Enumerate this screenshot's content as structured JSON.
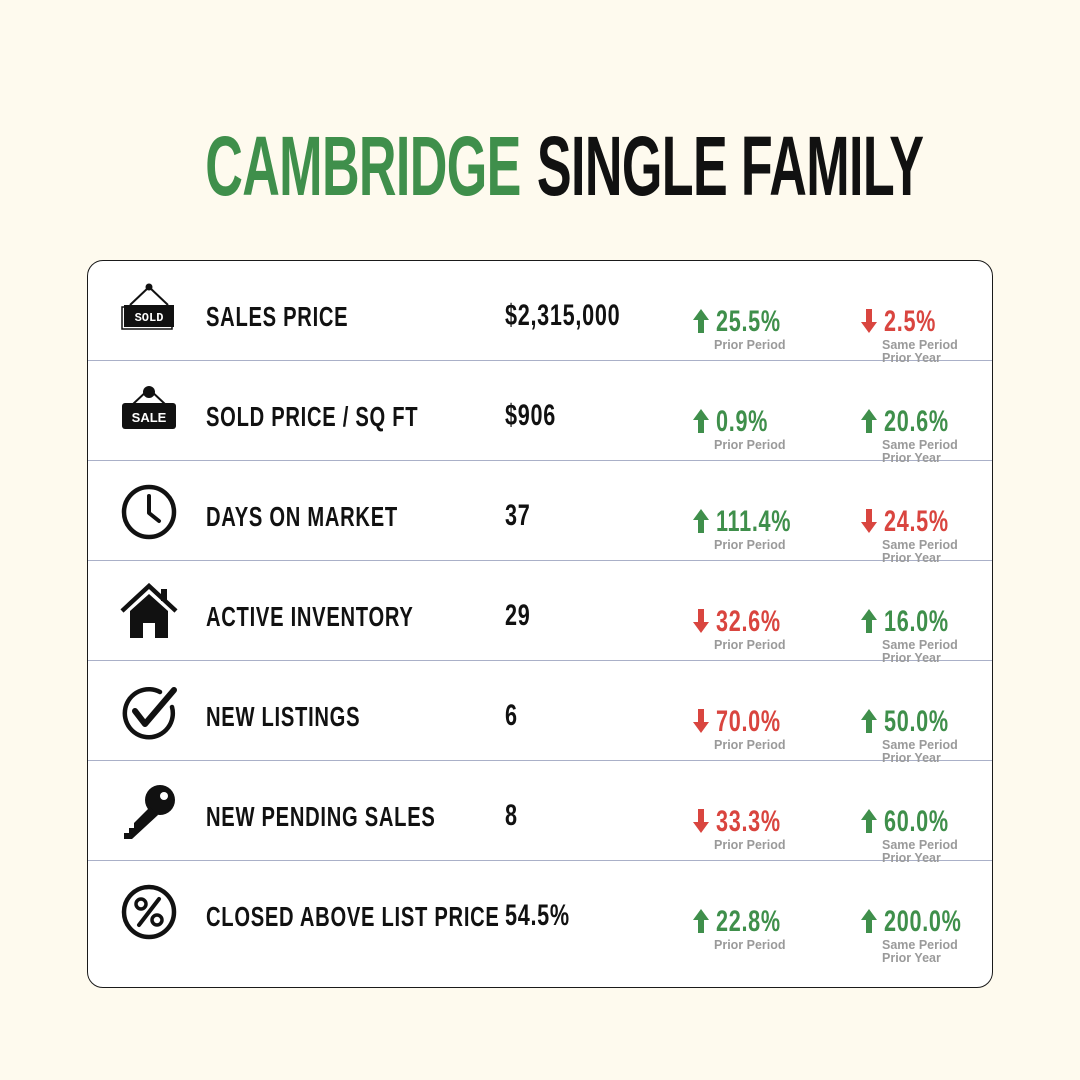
{
  "title": {
    "city": "CAMBRIDGE",
    "type": "SINGLE FAMILY"
  },
  "colors": {
    "green": "#3f8f4b",
    "red": "#d9453f",
    "background": "#fefaee"
  },
  "metrics": [
    {
      "icon": "sold-sign-icon",
      "label": "SALES PRICE",
      "value": "$2,315,000",
      "prior_period": {
        "direction": "up",
        "value": "25.5%",
        "caption": "Prior Period"
      },
      "prior_year": {
        "direction": "down",
        "value": "2.5%",
        "caption_line1": "Same Period",
        "caption_line2": "Prior Year"
      }
    },
    {
      "icon": "sale-sign-icon",
      "label": "SOLD PRICE / SQ FT",
      "value": "$906",
      "prior_period": {
        "direction": "up",
        "value": "0.9%",
        "caption": "Prior Period"
      },
      "prior_year": {
        "direction": "up",
        "value": "20.6%",
        "caption_line1": "Same Period",
        "caption_line2": "Prior Year"
      }
    },
    {
      "icon": "clock-icon",
      "label": "DAYS ON MARKET",
      "value": "37",
      "prior_period": {
        "direction": "up",
        "value": "111.4%",
        "caption": "Prior Period"
      },
      "prior_year": {
        "direction": "down",
        "value": "24.5%",
        "caption_line1": "Same Period",
        "caption_line2": "Prior Year"
      }
    },
    {
      "icon": "house-icon",
      "label": "ACTIVE INVENTORY",
      "value": "29",
      "prior_period": {
        "direction": "down",
        "value": "32.6%",
        "caption": "Prior Period"
      },
      "prior_year": {
        "direction": "up",
        "value": "16.0%",
        "caption_line1": "Same Period",
        "caption_line2": "Prior Year"
      }
    },
    {
      "icon": "checkmark-circle-icon",
      "label": "NEW LISTINGS",
      "value": "6",
      "prior_period": {
        "direction": "down",
        "value": "70.0%",
        "caption": "Prior Period"
      },
      "prior_year": {
        "direction": "up",
        "value": "50.0%",
        "caption_line1": "Same Period",
        "caption_line2": "Prior Year"
      }
    },
    {
      "icon": "key-icon",
      "label": "NEW PENDING SALES",
      "value": "8",
      "prior_period": {
        "direction": "down",
        "value": "33.3%",
        "caption": "Prior Period"
      },
      "prior_year": {
        "direction": "up",
        "value": "60.0%",
        "caption_line1": "Same Period",
        "caption_line2": "Prior Year"
      }
    },
    {
      "icon": "percent-circle-icon",
      "label": "CLOSED ABOVE LIST PRICE",
      "value": "54.5%",
      "prior_period": {
        "direction": "up",
        "value": "22.8%",
        "caption": "Prior Period"
      },
      "prior_year": {
        "direction": "up",
        "value": "200.0%",
        "caption_line1": "Same Period",
        "caption_line2": "Prior Year"
      }
    }
  ]
}
